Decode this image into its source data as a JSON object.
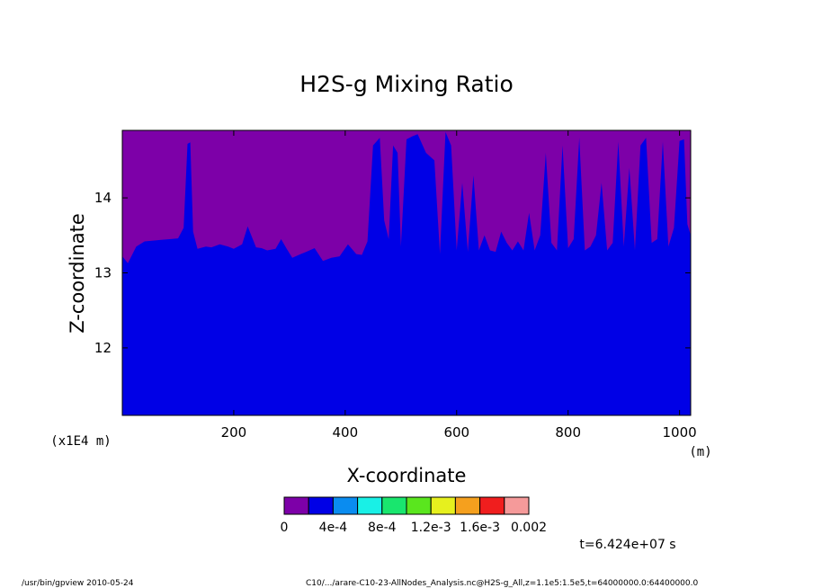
{
  "chart_data": {
    "type": "filled-contour",
    "title": "H2S-g Mixing Ratio",
    "xlabel": "X-coordinate",
    "ylabel": "Z-coordinate",
    "x_units": "(m)",
    "y_multiplier_label": "(x1E4 m)",
    "xlim": [
      0,
      1020
    ],
    "ylim": [
      11.1,
      14.9
    ],
    "x_ticks": [
      200,
      400,
      600,
      800,
      1000
    ],
    "x_tick_labels": [
      "200",
      "400",
      "600",
      "800",
      "1000"
    ],
    "y_ticks": [
      12,
      13,
      14
    ],
    "y_tick_labels": [
      "12",
      "13",
      "14"
    ],
    "levels": [
      0,
      0.0002,
      0.0004,
      0.0006,
      0.0008,
      0.001,
      0.0012,
      0.0014,
      0.0016,
      0.0018,
      0.002
    ],
    "legend_colors": [
      "#7d00a8",
      "#0000e6",
      "#0a8cf0",
      "#19f0e6",
      "#19e66e",
      "#5ae61e",
      "#e6f01e",
      "#f5a01e",
      "#f01e1e",
      "#f59a9a"
    ],
    "legend_labels": [
      "0",
      "4e-4",
      "8e-4",
      "1.2e-3",
      "1.6e-3",
      "0.002"
    ],
    "boundary_profile": {
      "x": [
        0,
        10,
        25,
        40,
        55,
        70,
        85,
        100,
        110,
        117,
        122,
        127,
        135,
        150,
        160,
        175,
        190,
        200,
        215,
        225,
        240,
        250,
        260,
        275,
        285,
        295,
        305,
        320,
        330,
        345,
        360,
        375,
        390,
        405,
        420,
        430,
        440,
        450,
        462,
        470,
        478,
        486,
        494,
        500,
        510,
        520,
        530,
        545,
        560,
        570,
        580,
        590,
        600,
        610,
        620,
        630,
        640,
        650,
        660,
        670,
        680,
        690,
        700,
        710,
        720,
        730,
        740,
        750,
        760,
        770,
        780,
        790,
        800,
        810,
        820,
        830,
        840,
        850,
        860,
        870,
        880,
        890,
        900,
        910,
        920,
        930,
        940,
        950,
        960,
        970,
        980,
        990,
        1000,
        1008,
        1014,
        1020
      ],
      "z": [
        13.22,
        13.13,
        13.35,
        13.42,
        13.43,
        13.44,
        13.45,
        13.46,
        13.6,
        14.72,
        14.74,
        13.55,
        13.32,
        13.35,
        13.34,
        13.38,
        13.35,
        13.32,
        13.38,
        13.62,
        13.34,
        13.33,
        13.3,
        13.32,
        13.45,
        13.32,
        13.2,
        13.25,
        13.28,
        13.33,
        13.16,
        13.2,
        13.22,
        13.38,
        13.25,
        13.24,
        13.42,
        14.7,
        14.8,
        13.7,
        13.45,
        14.7,
        14.6,
        13.35,
        14.78,
        14.82,
        14.85,
        14.6,
        14.5,
        13.25,
        14.88,
        14.7,
        13.3,
        14.2,
        13.28,
        14.3,
        13.3,
        13.5,
        13.3,
        13.28,
        13.55,
        13.4,
        13.3,
        13.42,
        13.3,
        13.8,
        13.3,
        13.5,
        14.6,
        13.4,
        13.3,
        14.7,
        13.33,
        13.45,
        14.8,
        13.3,
        13.35,
        13.5,
        14.2,
        13.3,
        13.4,
        14.75,
        13.35,
        14.4,
        13.3,
        14.7,
        14.8,
        13.4,
        13.45,
        14.75,
        13.35,
        13.6,
        14.76,
        14.78,
        13.65,
        13.5
      ]
    }
  },
  "annotations": {
    "time_label": "t=6.424e+07 s",
    "footer_left": "/usr/bin/gpview  2010-05-24",
    "footer_right": "C10/.../arare-C10-23-AllNodes_Analysis.nc@H2S-g_All,z=1.1e5:1.5e5,t=64000000.0:64400000.0"
  }
}
